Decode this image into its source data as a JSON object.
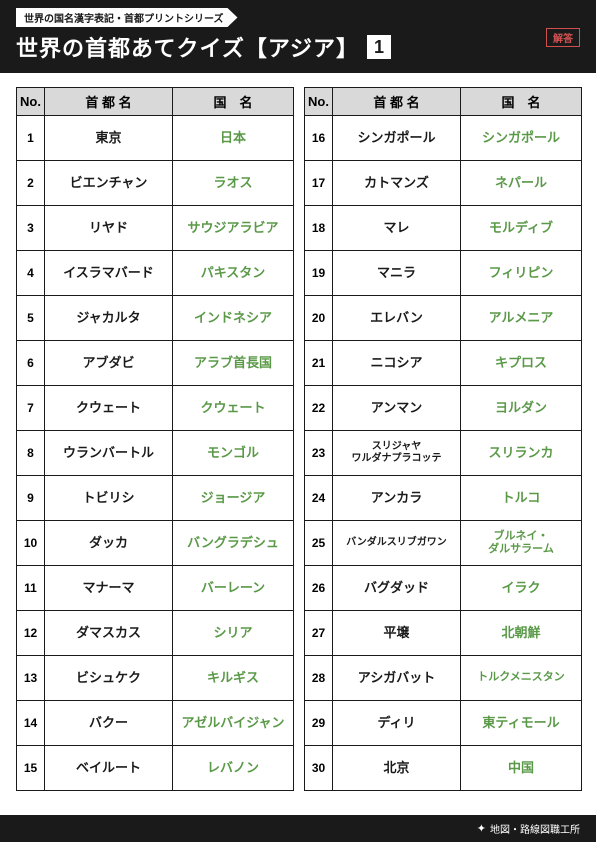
{
  "header": {
    "series": "世界の国名漢字表記・首都プリントシリーズ",
    "title": "世界の首都あてクイズ【アジア】",
    "page_num": "1",
    "answer_tag": "解答"
  },
  "columns": {
    "no": "No.",
    "capital": "首 都 名",
    "country": "国　名"
  },
  "left": [
    {
      "n": "1",
      "cap": "東京",
      "cnt": "日本"
    },
    {
      "n": "2",
      "cap": "ビエンチャン",
      "cnt": "ラオス"
    },
    {
      "n": "3",
      "cap": "リヤド",
      "cnt": "サウジアラビア"
    },
    {
      "n": "4",
      "cap": "イスラマバード",
      "cnt": "パキスタン"
    },
    {
      "n": "5",
      "cap": "ジャカルタ",
      "cnt": "インドネシア"
    },
    {
      "n": "6",
      "cap": "アブダビ",
      "cnt": "アラブ首長国"
    },
    {
      "n": "7",
      "cap": "クウェート",
      "cnt": "クウェート"
    },
    {
      "n": "8",
      "cap": "ウランバートル",
      "cnt": "モンゴル"
    },
    {
      "n": "9",
      "cap": "トビリシ",
      "cnt": "ジョージア"
    },
    {
      "n": "10",
      "cap": "ダッカ",
      "cnt": "バングラデシュ"
    },
    {
      "n": "11",
      "cap": "マナーマ",
      "cnt": "バーレーン"
    },
    {
      "n": "12",
      "cap": "ダマスカス",
      "cnt": "シリア"
    },
    {
      "n": "13",
      "cap": "ビシュケク",
      "cnt": "キルギス"
    },
    {
      "n": "14",
      "cap": "バクー",
      "cnt": "アゼルバイジャン"
    },
    {
      "n": "15",
      "cap": "ベイルート",
      "cnt": "レバノン"
    }
  ],
  "right": [
    {
      "n": "16",
      "cap": "シンガポール",
      "cnt": "シンガポール"
    },
    {
      "n": "17",
      "cap": "カトマンズ",
      "cnt": "ネパール"
    },
    {
      "n": "18",
      "cap": "マレ",
      "cnt": "モルディブ"
    },
    {
      "n": "19",
      "cap": "マニラ",
      "cnt": "フィリピン"
    },
    {
      "n": "20",
      "cap": "エレバン",
      "cnt": "アルメニア"
    },
    {
      "n": "21",
      "cap": "ニコシア",
      "cnt": "キプロス"
    },
    {
      "n": "22",
      "cap": "アンマン",
      "cnt": "ヨルダン"
    },
    {
      "n": "23",
      "cap": "スリジャヤ\nワルダナプラコッテ",
      "cnt": "スリランカ",
      "cap_small": true
    },
    {
      "n": "24",
      "cap": "アンカラ",
      "cnt": "トルコ"
    },
    {
      "n": "25",
      "cap": "バンダルスリブガワン",
      "cnt": "ブルネイ・\nダルサラーム",
      "cap_small": true,
      "cnt_small": true
    },
    {
      "n": "26",
      "cap": "バグダッド",
      "cnt": "イラク"
    },
    {
      "n": "27",
      "cap": "平壌",
      "cnt": "北朝鮮"
    },
    {
      "n": "28",
      "cap": "アシガバット",
      "cnt": "トルクメニスタン",
      "cnt_small": true
    },
    {
      "n": "29",
      "cap": "ディリ",
      "cnt": "東ティモール"
    },
    {
      "n": "30",
      "cap": "北京",
      "cnt": "中国"
    }
  ],
  "footer": {
    "text": "地図・路線図職工所"
  }
}
